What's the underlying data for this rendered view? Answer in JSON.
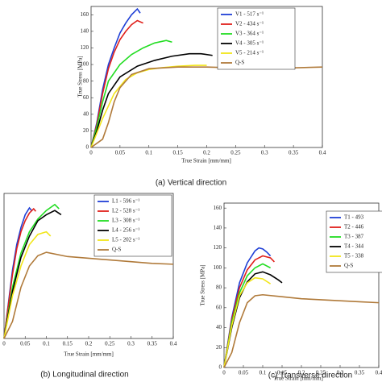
{
  "chart_data": [
    {
      "type": "line",
      "caption": "(a)  Vertical direction",
      "xlabel": "True Strain [mm/mm]",
      "ylabel": "True Stress [MPa]",
      "xlim": [
        0,
        0.4
      ],
      "ylim": [
        0,
        170
      ],
      "xticks": [
        0,
        0.05,
        0.1,
        0.15,
        0.2,
        0.25,
        0.3,
        0.35,
        0.4
      ],
      "yticks": [
        0,
        20,
        40,
        60,
        80,
        100,
        120,
        140,
        160
      ],
      "series": [
        {
          "name": "V1 - 517 s⁻¹",
          "color": "#1f3fd6",
          "x": [
            0,
            0.01,
            0.02,
            0.03,
            0.04,
            0.05,
            0.06,
            0.07,
            0.08,
            0.085
          ],
          "values": [
            0,
            30,
            70,
            100,
            120,
            138,
            150,
            160,
            167,
            162
          ]
        },
        {
          "name": "V2 - 434 s⁻¹",
          "color": "#e0201b",
          "x": [
            0,
            0.01,
            0.02,
            0.03,
            0.04,
            0.05,
            0.06,
            0.07,
            0.08,
            0.09
          ],
          "values": [
            0,
            28,
            65,
            95,
            115,
            130,
            140,
            148,
            153,
            150
          ]
        },
        {
          "name": "V3 - 364 s⁻¹",
          "color": "#22dd22",
          "x": [
            0,
            0.01,
            0.02,
            0.03,
            0.05,
            0.07,
            0.09,
            0.11,
            0.13,
            0.14
          ],
          "values": [
            0,
            25,
            55,
            80,
            100,
            112,
            120,
            126,
            129,
            127
          ]
        },
        {
          "name": "V4 - 305 s⁻¹",
          "color": "#000000",
          "x": [
            0,
            0.01,
            0.02,
            0.03,
            0.05,
            0.08,
            0.11,
            0.14,
            0.17,
            0.19,
            0.21
          ],
          "values": [
            0,
            20,
            45,
            65,
            85,
            98,
            105,
            110,
            113,
            113,
            111
          ]
        },
        {
          "name": "V5 - 214 s⁻¹",
          "color": "#f2e61a",
          "x": [
            0,
            0.02,
            0.04,
            0.06,
            0.08,
            0.1,
            0.12,
            0.15,
            0.18,
            0.2
          ],
          "values": [
            0,
            35,
            65,
            82,
            90,
            94,
            96,
            98,
            99,
            99
          ]
        },
        {
          "name": "Q-S",
          "color": "#b07a3a",
          "x": [
            0,
            0.02,
            0.03,
            0.04,
            0.05,
            0.07,
            0.1,
            0.15,
            0.2,
            0.25,
            0.3,
            0.35,
            0.4
          ],
          "values": [
            0,
            10,
            30,
            55,
            72,
            88,
            95,
            97,
            97,
            96,
            96,
            96,
            97
          ]
        }
      ]
    },
    {
      "type": "line",
      "caption": "(b)  Longitudinal direction",
      "xlabel": "True Strain [mm/mm]",
      "xlim": [
        0,
        0.4
      ],
      "ylim": [
        0,
        170
      ],
      "xticks": [
        0,
        0.05,
        0.1,
        0.15,
        0.2,
        0.25,
        0.3,
        0.35,
        0.4
      ],
      "series": [
        {
          "name": "L1 - 596 s⁻¹",
          "color": "#1f3fd6",
          "x": [
            0,
            0.01,
            0.02,
            0.03,
            0.04,
            0.05,
            0.06,
            0.065
          ],
          "values": [
            0,
            40,
            80,
            110,
            130,
            145,
            153,
            150
          ]
        },
        {
          "name": "L2 - 528 s⁻¹",
          "color": "#e0201b",
          "x": [
            0,
            0.01,
            0.02,
            0.03,
            0.04,
            0.05,
            0.06,
            0.07,
            0.075
          ],
          "values": [
            0,
            38,
            75,
            105,
            125,
            138,
            147,
            152,
            149
          ]
        },
        {
          "name": "L3 - 308 s⁻¹",
          "color": "#22dd22",
          "x": [
            0,
            0.02,
            0.04,
            0.06,
            0.08,
            0.1,
            0.12,
            0.13
          ],
          "values": [
            0,
            60,
            100,
            125,
            140,
            150,
            157,
            152
          ]
        },
        {
          "name": "L4 - 256 s⁻¹",
          "color": "#000000",
          "x": [
            0,
            0.02,
            0.04,
            0.06,
            0.08,
            0.1,
            0.12,
            0.135
          ],
          "values": [
            0,
            55,
            95,
            120,
            138,
            145,
            150,
            145
          ]
        },
        {
          "name": "L5 - 202 s⁻¹",
          "color": "#f2e61a",
          "x": [
            0,
            0.02,
            0.04,
            0.06,
            0.08,
            0.1,
            0.11
          ],
          "values": [
            0,
            50,
            85,
            110,
            122,
            125,
            120
          ]
        },
        {
          "name": "Q-S",
          "color": "#b07a3a",
          "x": [
            0,
            0.02,
            0.04,
            0.06,
            0.08,
            0.1,
            0.15,
            0.2,
            0.25,
            0.3,
            0.35,
            0.4
          ],
          "values": [
            0,
            20,
            60,
            85,
            97,
            101,
            96,
            94,
            92,
            90,
            88,
            87
          ]
        }
      ]
    },
    {
      "type": "line",
      "caption": "(c)  Transverse direction",
      "xlabel": "True Strain [mm/mm]",
      "ylabel": "True Stress [MPa]",
      "xlim": [
        0,
        0.4
      ],
      "ylim": [
        0,
        165
      ],
      "xticks": [
        0,
        0.05,
        0.1,
        0.15,
        0.2,
        0.25,
        0.3,
        0.35,
        0.4
      ],
      "yticks": [
        0,
        20,
        40,
        60,
        80,
        100,
        120,
        140,
        160
      ],
      "series": [
        {
          "name": "T1 - 493",
          "color": "#1f3fd6",
          "x": [
            0,
            0.02,
            0.04,
            0.06,
            0.08,
            0.09,
            0.1,
            0.11,
            0.12
          ],
          "values": [
            0,
            50,
            85,
            105,
            117,
            120,
            119,
            116,
            112
          ]
        },
        {
          "name": "T2 - 446",
          "color": "#e0201b",
          "x": [
            0,
            0.02,
            0.04,
            0.06,
            0.08,
            0.1,
            0.12,
            0.13
          ],
          "values": [
            0,
            48,
            80,
            98,
            108,
            112,
            110,
            106
          ]
        },
        {
          "name": "T3 - 387",
          "color": "#22dd22",
          "x": [
            0,
            0.02,
            0.04,
            0.06,
            0.08,
            0.1,
            0.12
          ],
          "values": [
            0,
            45,
            75,
            92,
            100,
            104,
            100
          ]
        },
        {
          "name": "T4 - 344",
          "color": "#000000",
          "x": [
            0,
            0.02,
            0.04,
            0.06,
            0.08,
            0.1,
            0.12,
            0.14,
            0.15
          ],
          "values": [
            0,
            40,
            70,
            86,
            94,
            96,
            93,
            88,
            85
          ]
        },
        {
          "name": "T5 - 338",
          "color": "#f2e61a",
          "x": [
            0,
            0.02,
            0.04,
            0.06,
            0.08,
            0.1,
            0.12
          ],
          "values": [
            0,
            42,
            72,
            85,
            90,
            89,
            84
          ]
        },
        {
          "name": "Q-S",
          "color": "#b07a3a",
          "x": [
            0,
            0.02,
            0.04,
            0.06,
            0.08,
            0.1,
            0.15,
            0.2,
            0.25,
            0.3,
            0.35,
            0.4
          ],
          "values": [
            0,
            15,
            45,
            65,
            72,
            73,
            71,
            69,
            68,
            67,
            66,
            65
          ]
        }
      ]
    }
  ]
}
